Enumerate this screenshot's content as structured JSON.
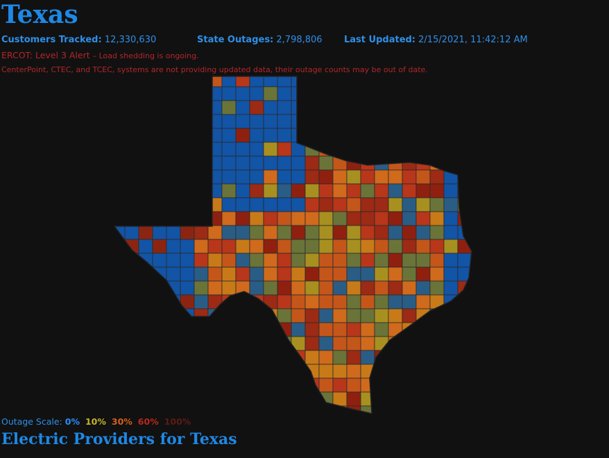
{
  "header": {
    "title": "Texas"
  },
  "stats": [
    {
      "label": "Customers Tracked:",
      "value": "12,330,630"
    },
    {
      "label": "State Outages:",
      "value": "2,798,806"
    },
    {
      "label": "Last Updated:",
      "value": "2/15/2021, 11:42:12 AM"
    }
  ],
  "alert": {
    "title": "ERCOT: Level 3 Alert",
    "detail": "– Load shedding is ongoing."
  },
  "notice": "CenterPoint, CTEC, and TCEC, systems are not providing updated data, their outage counts may be out of date.",
  "scale": {
    "label": "Outage Scale:",
    "items": [
      "0%",
      "10%",
      "30%",
      "60%",
      "100%"
    ]
  },
  "providers": {
    "title": "Electric Providers for Texas"
  }
}
